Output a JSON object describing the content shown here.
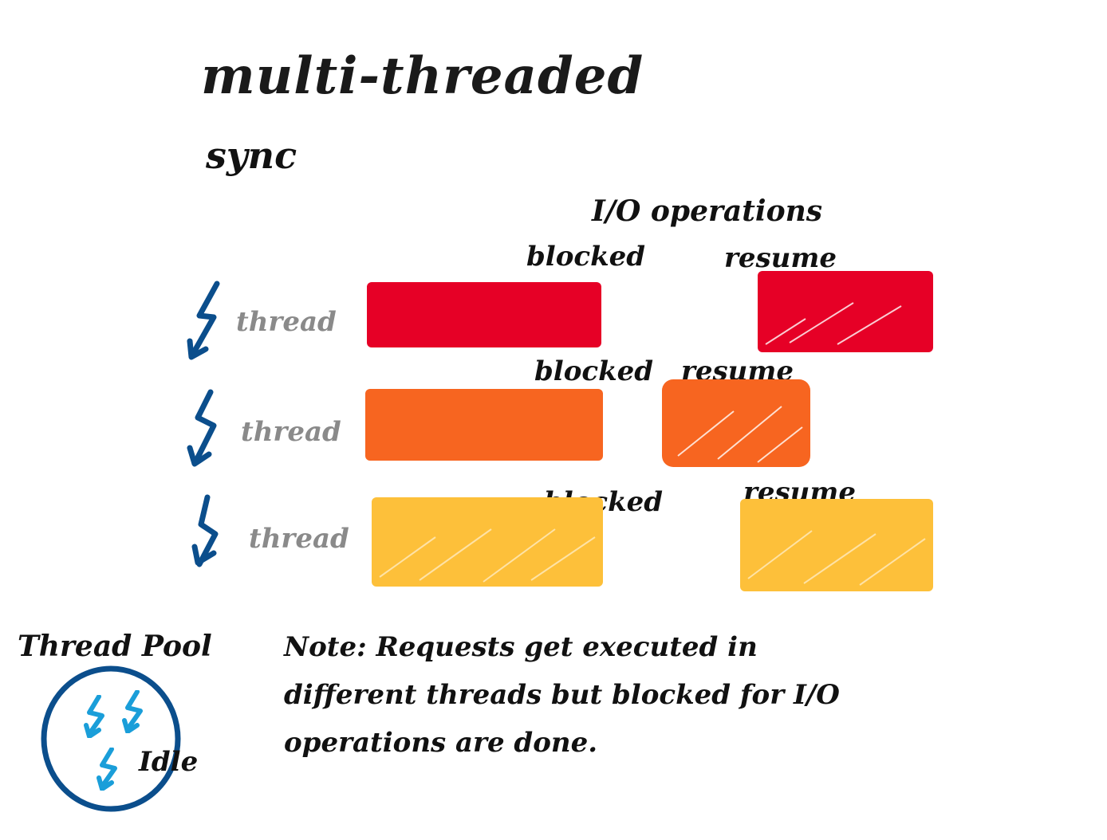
{
  "diagram": {
    "title": "multi-threaded",
    "subtitle": "sync",
    "io_label": "I/O operations",
    "threads": [
      {
        "label": "thread",
        "blocked_label": "blocked",
        "resume_label": "resume",
        "color": "#e60026"
      },
      {
        "label": "thread",
        "blocked_label": "blocked",
        "resume_label": "resume",
        "color": "#f76520"
      },
      {
        "label": "thread",
        "blocked_label": "blocked",
        "resume_label": "resume",
        "color": "#fdc03a"
      }
    ],
    "thread_pool": {
      "title": "Thread Pool",
      "idle_label": "Idle",
      "ring_color": "#0b4e8c",
      "icon_color": "#1a9ed9"
    },
    "note": "Note: Requests get executed in different threads but blocked for I/O operations are done."
  },
  "icons": {
    "thread_icon": "lightning-arrow-icon",
    "pool_icon": "lightning-bolt-icon"
  }
}
